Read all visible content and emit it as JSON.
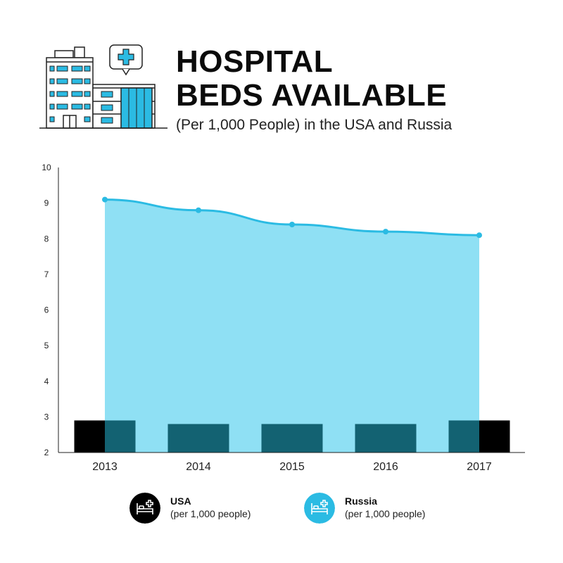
{
  "header": {
    "title_line1": "HOSPITAL",
    "title_line2": "BEDS AVAILABLE",
    "subtitle": "(Per 1,000 People) in the USA and Russia"
  },
  "colors": {
    "usa": "#000000",
    "russia_line": "#2bbbe3",
    "russia_fill": "#8fe0f4",
    "overlap": "#136272",
    "axis": "#222222"
  },
  "chart_data": {
    "type": "bar",
    "categories": [
      "2013",
      "2014",
      "2015",
      "2016",
      "2017"
    ],
    "ylim": [
      2,
      10
    ],
    "yticks": [
      2,
      3,
      4,
      5,
      6,
      7,
      8,
      9,
      10
    ],
    "xlabel": "",
    "ylabel": "",
    "series": [
      {
        "name": "USA",
        "type": "bar",
        "values": [
          2.9,
          2.8,
          2.8,
          2.8,
          2.9
        ]
      },
      {
        "name": "Russia",
        "type": "area",
        "values": [
          9.1,
          8.8,
          8.4,
          8.2,
          8.1
        ]
      }
    ],
    "legend_position": "bottom"
  },
  "legend": [
    {
      "name": "USA",
      "unit": "(per 1,000 people)",
      "icon": "bed-icon"
    },
    {
      "name": "Russia",
      "unit": "(per 1,000 people)",
      "icon": "bed-icon"
    }
  ]
}
